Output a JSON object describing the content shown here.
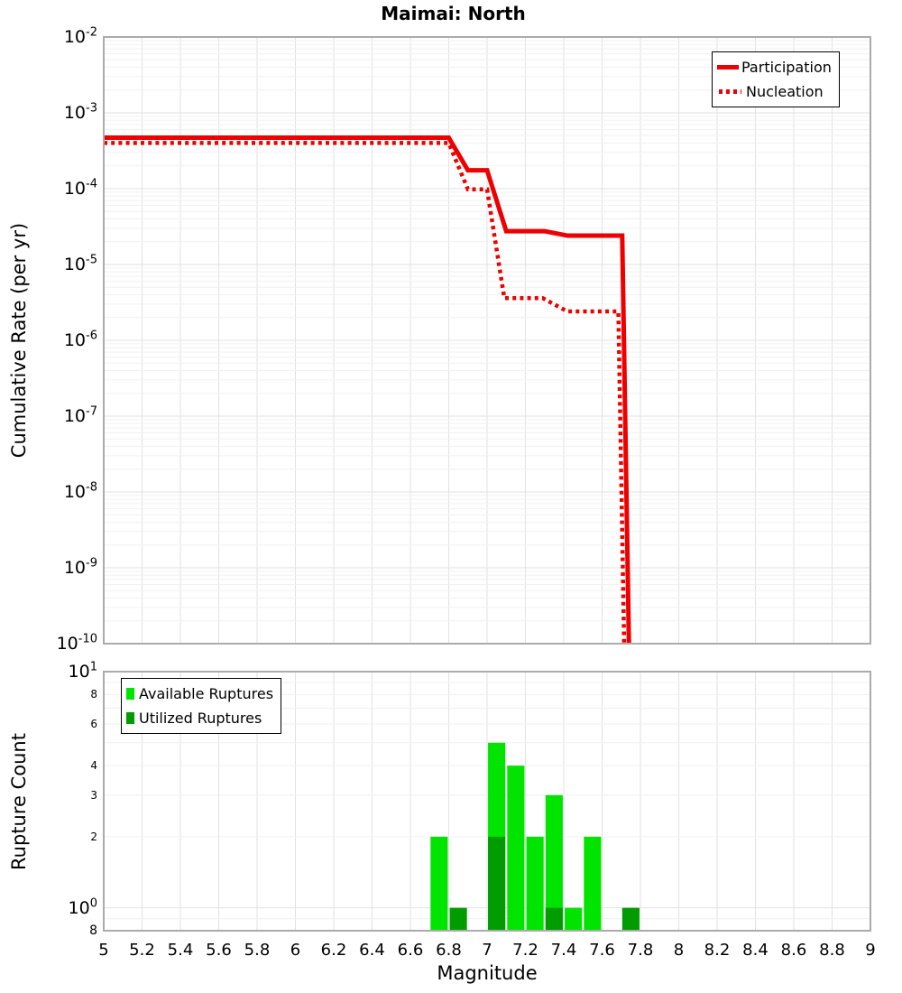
{
  "title": "Maimai: North",
  "colors": {
    "line_red": "#ee0000",
    "available_green": "#00e400",
    "utilized_green": "#009c00",
    "grid_minor": "#f0f0f0",
    "grid_major": "#e2e2e2",
    "plot_border": "#ababab"
  },
  "chart_data": [
    {
      "type": "line",
      "title": "Maimai: North",
      "ylabel": "Cumulative Rate (per yr)",
      "xlabel": "Magnitude",
      "xlim": [
        5,
        9
      ],
      "ylim": [
        1e-10,
        0.01
      ],
      "y_scale": "log",
      "grid": true,
      "legend_position": "top-right",
      "x_tick_values": [
        5,
        5.2,
        5.4,
        5.6,
        5.8,
        6,
        6.2,
        6.4,
        6.6,
        6.8,
        7,
        7.2,
        7.4,
        7.6,
        7.8,
        8,
        8.2,
        8.4,
        8.6,
        8.8,
        9
      ],
      "x_tick_labels": [
        "5",
        "5.2",
        "5.4",
        "5.6",
        "5.8",
        "6",
        "6.2",
        "6.4",
        "6.6",
        "6.8",
        "7",
        "7.2",
        "7.4",
        "7.6",
        "7.8",
        "8",
        "8.2",
        "8.4",
        "8.6",
        "8.8",
        "9"
      ],
      "y_ticks": [
        {
          "base": "10",
          "exp": "-2",
          "value": 0.01
        },
        {
          "base": "10",
          "exp": "-3",
          "value": 0.001
        },
        {
          "base": "10",
          "exp": "-4",
          "value": 0.0001
        },
        {
          "base": "10",
          "exp": "-5",
          "value": 1e-05
        },
        {
          "base": "10",
          "exp": "-6",
          "value": 1e-06
        },
        {
          "base": "10",
          "exp": "-7",
          "value": 1e-07
        },
        {
          "base": "10",
          "exp": "-8",
          "value": 1e-08
        },
        {
          "base": "10",
          "exp": "-9",
          "value": 1e-09
        },
        {
          "base": "10",
          "exp": "-10",
          "value": 1e-10
        }
      ],
      "series": [
        {
          "name": "Participation",
          "style": "solid",
          "color": "#ee0000",
          "points": [
            [
              5.0,
              0.00047
            ],
            [
              6.8,
              0.00047
            ],
            [
              6.9,
              0.000175
            ],
            [
              7.0,
              0.000175
            ],
            [
              7.1,
              2.75e-05
            ],
            [
              7.3,
              2.75e-05
            ],
            [
              7.42,
              2.4e-05
            ],
            [
              7.705,
              2.4e-05
            ],
            [
              7.74,
              1e-10
            ]
          ]
        },
        {
          "name": "Nucleation",
          "style": "dotted",
          "color": "#ee0000",
          "points": [
            [
              5.0,
              0.0004
            ],
            [
              6.8,
              0.0004
            ],
            [
              6.9,
              9.8e-05
            ],
            [
              7.0,
              9.8e-05
            ],
            [
              7.09,
              3.6e-06
            ],
            [
              7.29,
              3.6e-06
            ],
            [
              7.42,
              2.4e-06
            ],
            [
              7.685,
              2.4e-06
            ],
            [
              7.715,
              1e-10
            ]
          ]
        }
      ]
    },
    {
      "type": "bar",
      "ylabel": "Rupture Count",
      "xlabel": "Magnitude",
      "xlim": [
        5,
        9
      ],
      "ylim": [
        0.8,
        10
      ],
      "y_scale": "log",
      "grid": true,
      "legend_position": "top-left",
      "bar_width": 0.09,
      "y_ticks": [
        {
          "base": "10",
          "exp": "1",
          "value": 10
        },
        {
          "base": "8",
          "value": 8
        },
        {
          "base": "6",
          "value": 6
        },
        {
          "base": "4",
          "value": 4
        },
        {
          "base": "3",
          "value": 3
        },
        {
          "base": "2",
          "value": 2
        },
        {
          "base": "10",
          "exp": "0",
          "value": 1
        },
        {
          "base": "8",
          "value": 0.8
        }
      ],
      "series": [
        {
          "name": "Available Ruptures",
          "color": "#00e400",
          "bars": [
            [
              6.75,
              2
            ],
            [
              7.05,
              5
            ],
            [
              7.15,
              4
            ],
            [
              7.25,
              2
            ],
            [
              7.35,
              3
            ],
            [
              7.45,
              1
            ],
            [
              7.55,
              2
            ]
          ]
        },
        {
          "name": "Utilized Ruptures",
          "color": "#009c00",
          "bars": [
            [
              6.85,
              1
            ],
            [
              7.05,
              2
            ],
            [
              7.35,
              1
            ],
            [
              7.75,
              1
            ]
          ]
        }
      ]
    }
  ]
}
